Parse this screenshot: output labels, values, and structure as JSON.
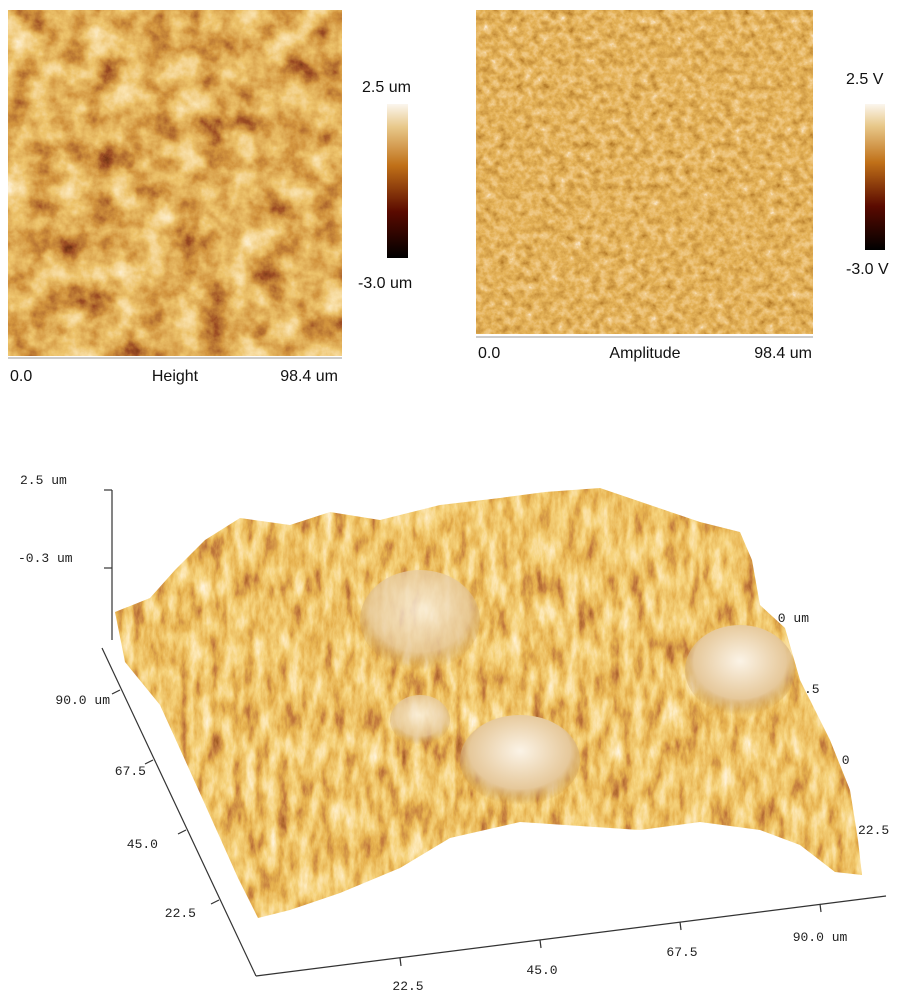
{
  "height_panel": {
    "scale_max": "2.5 um",
    "scale_min": "-3.0 um",
    "x_start": "0.0",
    "label": "Height",
    "x_end": "98.4 um"
  },
  "amplitude_panel": {
    "scale_max": "2.5 V",
    "scale_min": "-3.0 V",
    "x_start": "0.0",
    "label": "Amplitude",
    "x_end": "98.4 um"
  },
  "surface_3d": {
    "z_labels": [
      "2.5 um",
      "-0.3 um"
    ],
    "left_axis_labels": [
      "90.0 um",
      "67.5",
      "45.0",
      "22.5"
    ],
    "bottom_axis_labels": [
      "22.5",
      "45.0",
      "67.5",
      "90.0 um"
    ],
    "right_axis_labels": [
      ".0 um",
      ".5",
      ".0",
      "22.5"
    ]
  }
}
